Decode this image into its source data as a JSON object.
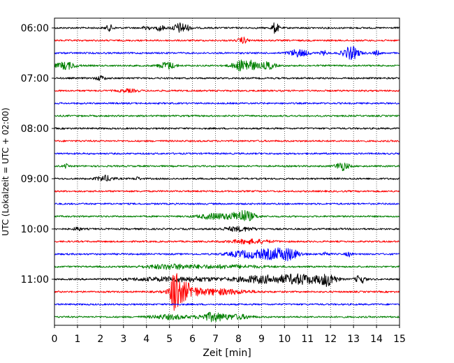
{
  "chart_data": {
    "type": "line",
    "title": "",
    "xlabel": "Zeit  [min]",
    "ylabel": "UTC (Lokalzeit = UTC + 02:00)",
    "xlim": [
      0,
      15
    ],
    "x_ticks": [
      "0",
      "1",
      "2",
      "3",
      "4",
      "5",
      "6",
      "7",
      "8",
      "9",
      "10",
      "11",
      "12",
      "13",
      "14",
      "15"
    ],
    "y_ticks": [
      "06:00",
      "07:00",
      "08:00",
      "09:00",
      "10:00",
      "11:00"
    ],
    "grid": "vertical dotted",
    "trace_interval_minutes": 15,
    "trace_colors": [
      "#000000",
      "#ff0000",
      "#0000ff",
      "#008000"
    ],
    "series": [
      {
        "start": "06:00",
        "color": "#000000",
        "bursts": [
          {
            "t": 2.4,
            "a": 4,
            "w": 0.12
          },
          {
            "t": 4.0,
            "a": 6,
            "w": 0.08
          },
          {
            "t": 4.6,
            "a": 5,
            "w": 0.1
          },
          {
            "t": 5.5,
            "a": 7,
            "w": 0.25
          },
          {
            "t": 9.6,
            "a": 8,
            "w": 0.1
          }
        ]
      },
      {
        "start": "06:15",
        "color": "#ff0000",
        "bursts": [
          {
            "t": 8.2,
            "a": 4,
            "w": 0.15
          }
        ]
      },
      {
        "start": "06:30",
        "color": "#0000ff",
        "bursts": [
          {
            "t": 10.6,
            "a": 5,
            "w": 0.3
          },
          {
            "t": 11.7,
            "a": 3,
            "w": 0.1
          },
          {
            "t": 12.9,
            "a": 9,
            "w": 0.25
          },
          {
            "t": 14.0,
            "a": 3,
            "w": 0.1
          }
        ]
      },
      {
        "start": "06:45",
        "color": "#008000",
        "bursts": [
          {
            "t": 0.5,
            "a": 5,
            "w": 0.3
          },
          {
            "t": 4.9,
            "a": 5,
            "w": 0.25
          },
          {
            "t": 8.3,
            "a": 9,
            "w": 0.35
          },
          {
            "t": 9.3,
            "a": 5,
            "w": 0.2
          }
        ]
      },
      {
        "start": "07:00",
        "color": "#000000",
        "bursts": [
          {
            "t": 2.0,
            "a": 3,
            "w": 0.15
          }
        ]
      },
      {
        "start": "07:15",
        "color": "#ff0000",
        "bursts": [
          {
            "t": 3.2,
            "a": 2,
            "w": 0.3
          }
        ]
      },
      {
        "start": "07:30",
        "color": "#0000ff",
        "bursts": []
      },
      {
        "start": "07:45",
        "color": "#008000",
        "bursts": []
      },
      {
        "start": "08:00",
        "color": "#000000",
        "bursts": []
      },
      {
        "start": "08:15",
        "color": "#ff0000",
        "bursts": []
      },
      {
        "start": "08:30",
        "color": "#0000ff",
        "bursts": []
      },
      {
        "start": "08:45",
        "color": "#008000",
        "bursts": [
          {
            "t": 0.5,
            "a": 3,
            "w": 0.05
          },
          {
            "t": 12.5,
            "a": 6,
            "w": 0.2
          }
        ]
      },
      {
        "start": "09:00",
        "color": "#000000",
        "bursts": [
          {
            "t": 2.2,
            "a": 4,
            "w": 0.25
          },
          {
            "t": 3.6,
            "a": 2,
            "w": 0.1
          }
        ]
      },
      {
        "start": "09:15",
        "color": "#ff0000",
        "bursts": []
      },
      {
        "start": "09:30",
        "color": "#0000ff",
        "bursts": []
      },
      {
        "start": "09:45",
        "color": "#008000",
        "bursts": [
          {
            "t": 7.0,
            "a": 4,
            "w": 0.5
          },
          {
            "t": 8.2,
            "a": 8,
            "w": 0.35
          }
        ]
      },
      {
        "start": "10:00",
        "color": "#000000",
        "bursts": [
          {
            "t": 1.0,
            "a": 3,
            "w": 0.1
          },
          {
            "t": 8.0,
            "a": 3,
            "w": 0.5
          }
        ]
      },
      {
        "start": "10:15",
        "color": "#ff0000",
        "bursts": [
          {
            "t": 8.5,
            "a": 3,
            "w": 0.6
          }
        ]
      },
      {
        "start": "10:30",
        "color": "#0000ff",
        "bursts": [
          {
            "t": 8.2,
            "a": 4,
            "w": 0.5
          },
          {
            "t": 9.5,
            "a": 7,
            "w": 0.6
          },
          {
            "t": 10.2,
            "a": 5,
            "w": 0.3
          },
          {
            "t": 11.8,
            "a": 3,
            "w": 0.1
          },
          {
            "t": 12.8,
            "a": 3,
            "w": 0.1
          }
        ]
      },
      {
        "start": "10:45",
        "color": "#008000",
        "bursts": [
          {
            "t": 5.0,
            "a": 3,
            "w": 0.8
          },
          {
            "t": 7.5,
            "a": 2,
            "w": 1.2
          }
        ]
      },
      {
        "start": "11:00",
        "color": "#000000",
        "bursts": [
          {
            "t": 5.5,
            "a": 3,
            "w": 1.5
          },
          {
            "t": 9.0,
            "a": 5,
            "w": 0.7
          },
          {
            "t": 10.7,
            "a": 7,
            "w": 0.6
          },
          {
            "t": 11.9,
            "a": 9,
            "w": 0.25
          },
          {
            "t": 13.3,
            "a": 6,
            "w": 0.15
          }
        ]
      },
      {
        "start": "11:15",
        "color": "#ff0000",
        "bursts": [
          {
            "t": 5.25,
            "a": 30,
            "w": 0.12
          },
          {
            "t": 5.6,
            "a": 12,
            "w": 0.35
          },
          {
            "t": 7.0,
            "a": 4,
            "w": 1.0
          }
        ]
      },
      {
        "start": "11:30",
        "color": "#0000ff",
        "bursts": []
      },
      {
        "start": "11:45",
        "color": "#008000",
        "bursts": [
          {
            "t": 5.0,
            "a": 3,
            "w": 0.6
          },
          {
            "t": 6.9,
            "a": 6,
            "w": 0.4
          },
          {
            "t": 8.0,
            "a": 3,
            "w": 0.4
          }
        ]
      }
    ]
  }
}
